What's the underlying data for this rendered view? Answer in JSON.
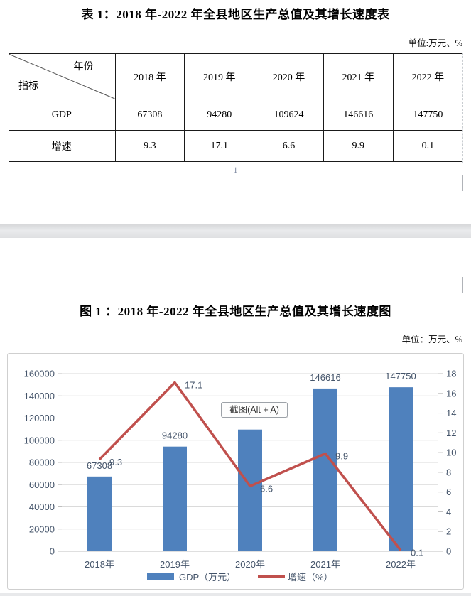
{
  "page1": {
    "table_title": "表 1：2018 年-2022 年全县地区生产总值及其增长速度表",
    "unit_note": "单位:万元、%",
    "table": {
      "corner_top_right": "年份",
      "corner_bottom_left": "指标",
      "year_headers": [
        "2018 年",
        "2019 年",
        "2020 年",
        "2021 年",
        "2022 年"
      ],
      "rows": [
        {
          "label": "GDP",
          "values": [
            "67308",
            "94280",
            "109624",
            "146616",
            "147750"
          ]
        },
        {
          "label": "增速",
          "values": [
            "9.3",
            "17.1",
            "6.6",
            "9.9",
            "0.1"
          ]
        }
      ]
    },
    "page_number": "1"
  },
  "page2": {
    "figure_title": "图 1 ：2018 年-2022 年全县地区生产总值及其增长速度图",
    "unit_note": "单位：万元、%",
    "screenshot_tooltip": "截图(Alt + A)"
  },
  "chart_data": {
    "type": "bar",
    "subtype": "combo-bar-line",
    "categories": [
      "2018年",
      "2019年",
      "2020年",
      "2021年",
      "2022年"
    ],
    "series": [
      {
        "name": "GDP（万元）",
        "type": "bar",
        "axis": "left",
        "color": "#4F81BD",
        "values": [
          67308,
          94280,
          109624,
          146616,
          147750
        ],
        "labels": [
          "67308",
          "94280",
          null,
          "146616",
          "147750"
        ]
      },
      {
        "name": "增速（%）",
        "type": "line",
        "axis": "right",
        "color": "#C0504D",
        "values": [
          9.3,
          17.1,
          6.6,
          9.9,
          0.1
        ],
        "labels": [
          "9.3",
          "17.1",
          "6.6",
          "9.9",
          "0.1"
        ]
      }
    ],
    "left_axis": {
      "min": 0,
      "max": 160000,
      "step": 20000
    },
    "right_axis": {
      "min": 0,
      "max": 18,
      "step": 2
    },
    "grid": true,
    "legend_position": "bottom"
  },
  "colors": {
    "bar": "#4F81BD",
    "line": "#C0504D",
    "axis_text": "#44546A",
    "gridline": "#DADADA",
    "axis_line": "#BFBFBF",
    "chart_border": "#CFCFCF",
    "page_gap": "#DFE0E2"
  }
}
